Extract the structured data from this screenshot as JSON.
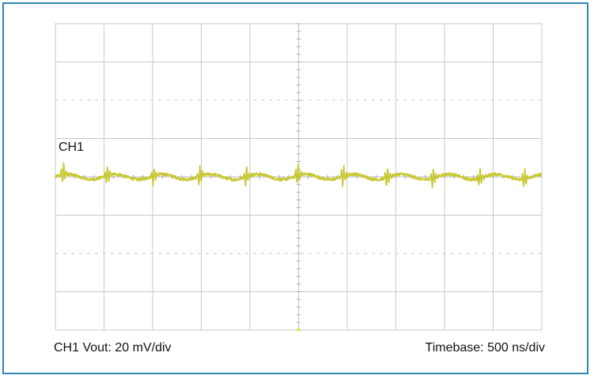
{
  "chart_data": {
    "type": "line",
    "title": "",
    "channel_label": "CH1",
    "vertical_scale": "CH1 Vout: 20 mV/div",
    "timebase": "Timebase: 500 ns/div",
    "grid": true,
    "divisions": {
      "x": 10,
      "y": 8
    },
    "xlim": [
      0,
      5000
    ],
    "ylim": [
      -80,
      80
    ],
    "x_unit": "ns",
    "y_unit": "mV",
    "series": [
      {
        "color": "#c8c832",
        "baseline": 0,
        "ripple_period_ns": 490,
        "spike_times_ns": [
          80,
          530,
          1010,
          1480,
          1960,
          2490,
          2960,
          3410,
          3880,
          4360,
          4820
        ],
        "spike_peak_mV": [
          10,
          8,
          8,
          8,
          9,
          10,
          8,
          9,
          8,
          8,
          7
        ],
        "spike_trough_mV": [
          -7,
          -7,
          -7,
          -7,
          -7,
          -7,
          -7,
          -7,
          -7,
          -7,
          -6
        ]
      }
    ]
  },
  "colors": {
    "frame": "#2f86b4",
    "grid": "#c8c8c8",
    "trace": "#c8c832",
    "trigger_marker": "#e0dc3a"
  }
}
